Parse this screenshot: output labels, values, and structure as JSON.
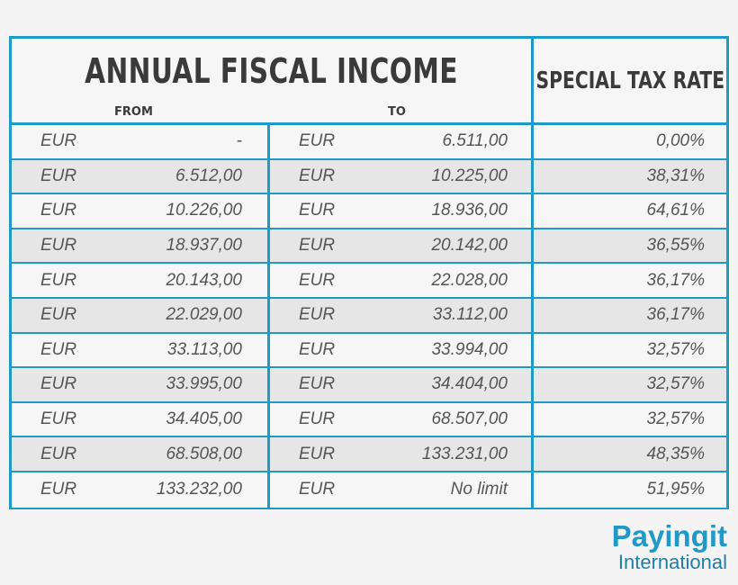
{
  "header": {
    "title": "ANNUAL FISCAL INCOME",
    "from_label": "FROM",
    "to_label": "TO",
    "rate_label": "SPECIAL TAX RATE"
  },
  "rows": [
    {
      "from_cur": "EUR",
      "from": "-",
      "to_cur": "EUR",
      "to": "6.511,00",
      "rate": "0,00%"
    },
    {
      "from_cur": "EUR",
      "from": "6.512,00",
      "to_cur": "EUR",
      "to": "10.225,00",
      "rate": "38,31%"
    },
    {
      "from_cur": "EUR",
      "from": "10.226,00",
      "to_cur": "EUR",
      "to": "18.936,00",
      "rate": "64,61%"
    },
    {
      "from_cur": "EUR",
      "from": "18.937,00",
      "to_cur": "EUR",
      "to": "20.142,00",
      "rate": "36,55%"
    },
    {
      "from_cur": "EUR",
      "from": "20.143,00",
      "to_cur": "EUR",
      "to": "22.028,00",
      "rate": "36,17%"
    },
    {
      "from_cur": "EUR",
      "from": "22.029,00",
      "to_cur": "EUR",
      "to": "33.112,00",
      "rate": "36,17%"
    },
    {
      "from_cur": "EUR",
      "from": "33.113,00",
      "to_cur": "EUR",
      "to": "33.994,00",
      "rate": "32,57%"
    },
    {
      "from_cur": "EUR",
      "from": "33.995,00",
      "to_cur": "EUR",
      "to": "34.404,00",
      "rate": "32,57%"
    },
    {
      "from_cur": "EUR",
      "from": "34.405,00",
      "to_cur": "EUR",
      "to": "68.507,00",
      "rate": "32,57%"
    },
    {
      "from_cur": "EUR",
      "from": "68.508,00",
      "to_cur": "EUR",
      "to": "133.231,00",
      "rate": "48,35%"
    },
    {
      "from_cur": "EUR",
      "from": "133.232,00",
      "to_cur": "EUR",
      "to": "No limit",
      "rate": "51,95%"
    }
  ],
  "logo": {
    "main": "Payingit",
    "sub": "International"
  },
  "colors": {
    "accent": "#1f9ac6",
    "alt_row": "#e6e6e6",
    "text": "#555555"
  }
}
